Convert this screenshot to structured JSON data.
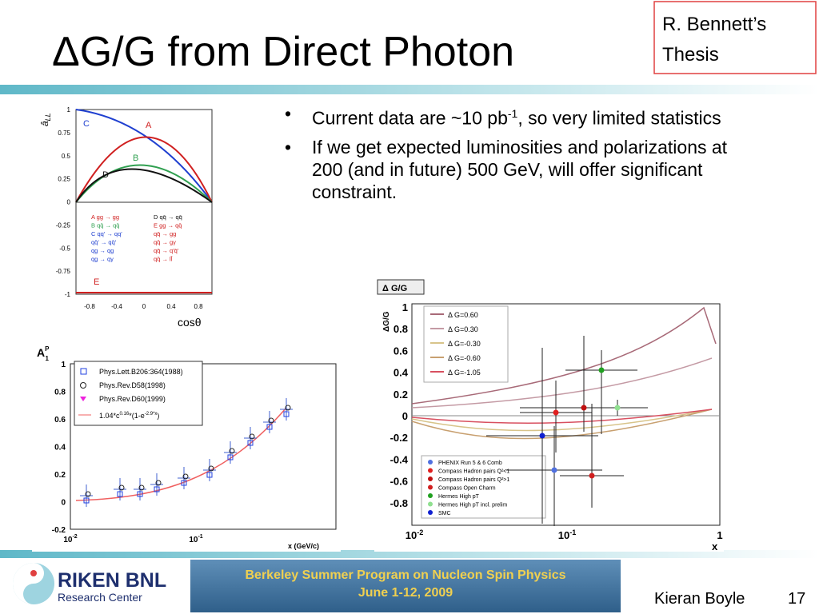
{
  "header": {
    "title": "ΔG/G from Direct Photon",
    "note": [
      "R. Bennett’s",
      "Thesis"
    ]
  },
  "bullets": [
    [
      "Current data are ~10 pb",
      "-1",
      ", so very limited statistics"
    ],
    [
      "If we get expected luminosities and polarizations at 200 (and in future) 500 GeV, will offer significant constraint."
    ]
  ],
  "figures": [
    {
      "y_label": "â",
      "y_label_sub": "LL",
      "yticks": [
        "1",
        "0.75",
        "0.5",
        "0.25",
        "0",
        "-0.25",
        "-0.5",
        "-0.75",
        "-1"
      ],
      "xticks": [
        "-0.8",
        "-0.4",
        "0",
        "0.4",
        "0.8"
      ],
      "x_label": "cosθ",
      "curve_labels": [
        "A",
        "B",
        "C",
        "D",
        "E"
      ],
      "processes_left": [
        "A gg → gg",
        "B qq̄ → qq̄",
        "C qq′ → qq′",
        "qq̄′ → qq̄′",
        "qg → qg",
        "qg → qγ"
      ],
      "processes_right": [
        "D qq̄ → qq̄",
        "E gg → qq̄",
        "qq̄ → gg",
        "qq̄ → gγ",
        "qq̄ → q′q̄′",
        "qq̄ → ll̄"
      ]
    },
    {
      "title": {
        "main": "A",
        "sub": "1",
        "sup": "P"
      },
      "yticks": [
        "1",
        "0.8",
        "0.6",
        "0.4",
        "0.2",
        "0",
        "-0.2"
      ],
      "xticks": [
        {
          "base": "10",
          "exp": "-2"
        },
        {
          "base": "10",
          "exp": "-1"
        }
      ],
      "x_label": "x (GeV/c)",
      "legend": [
        "Phys.Lett.B206:364(1988)",
        "Phys.Rev.D58(1998)",
        "Phys.Rev.D60(1999)"
      ],
      "fit_label": [
        "1.04*c",
        "0.16",
        "*(1-e",
        "-2.9*x",
        ")"
      ]
    },
    {
      "title": "Δ G/G",
      "y_label": "ΔG/G",
      "yticks": [
        "1",
        "0.8",
        "0.6",
        "0.4",
        "0.2",
        "0",
        "-0.2",
        "-0.4",
        "-0.6",
        "-0.8"
      ],
      "xticks": [
        {
          "base": "10",
          "exp": "-2"
        },
        {
          "base": "10",
          "exp": "-1"
        },
        "1"
      ],
      "x_label": "x",
      "curves": [
        {
          "name": "Δ G=0.60",
          "color": "#a86a78"
        },
        {
          "name": "Δ G=0.30",
          "color": "#c49aa4"
        },
        {
          "name": "Δ G=-0.30",
          "color": "#d8c48a"
        },
        {
          "name": "Δ G=-0.60",
          "color": "#c8a070"
        },
        {
          "name": "Δ G=-1.05",
          "color": "#d85060"
        }
      ],
      "experiments": [
        {
          "name": "PHENIX Run 5 & 6 Comb",
          "color": "#5070e0"
        },
        {
          "name": "Compass Hadron pairs Q²<1",
          "color": "#e02020"
        },
        {
          "name": "Compass Hadron pairs Q²>1",
          "color": "#c01010"
        },
        {
          "name": "Compass Open Charm",
          "color": "#d02020"
        },
        {
          "name": "Hermes High pT",
          "color": "#20a020"
        },
        {
          "name": "Hermes High pT incl. prelim",
          "color": "#90e090"
        },
        {
          "name": "SMC",
          "color": "#1020d0"
        }
      ]
    }
  ],
  "footer": {
    "logo": [
      "RIKEN BNL",
      "Research Center"
    ],
    "banner": [
      "Berkeley Summer Program on Nucleon Spin Physics",
      "June 1-12, 2009"
    ],
    "presenter": "Kieran Boyle",
    "page": "17"
  }
}
